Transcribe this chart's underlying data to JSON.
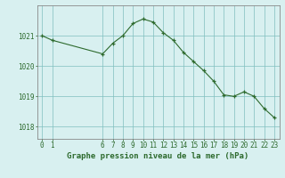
{
  "x": [
    0,
    1,
    6,
    7,
    8,
    9,
    10,
    11,
    12,
    13,
    14,
    15,
    16,
    17,
    18,
    19,
    20,
    21,
    22,
    23
  ],
  "y": [
    1021.0,
    1020.85,
    1020.4,
    1020.75,
    1021.0,
    1021.4,
    1021.55,
    1021.45,
    1021.1,
    1020.85,
    1020.45,
    1020.15,
    1019.85,
    1019.5,
    1019.05,
    1019.0,
    1019.15,
    1019.0,
    1018.6,
    1018.3
  ],
  "line_color": "#2d6a2d",
  "marker": "+",
  "marker_color": "#2d6a2d",
  "bg_color": "#d8f0f0",
  "grid_color": "#7fbfbf",
  "xlabel": "Graphe pression niveau de la mer (hPa)",
  "yticks": [
    1018,
    1019,
    1020,
    1021
  ],
  "xticks": [
    0,
    1,
    6,
    7,
    8,
    9,
    10,
    11,
    12,
    13,
    14,
    15,
    16,
    17,
    18,
    19,
    20,
    21,
    22,
    23
  ],
  "xlim": [
    -0.5,
    23.5
  ],
  "ylim": [
    1017.6,
    1022.0
  ],
  "tick_color": "#2d6a2d",
  "axis_color": "#888888",
  "xlabel_fontsize": 6.5,
  "tick_fontsize": 5.5
}
